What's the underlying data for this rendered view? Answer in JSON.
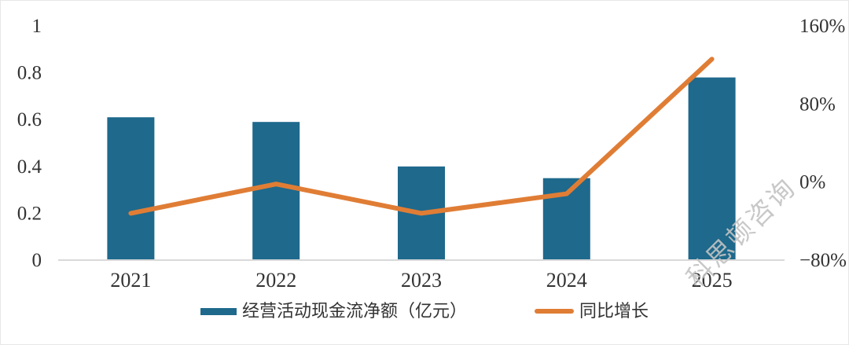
{
  "watermark": "科思顿咨询",
  "colors": {
    "bar": "#1E698C",
    "line": "#E07D35",
    "axis_line": "#D9D9D9",
    "tick_text": "#333333"
  },
  "chart_data": {
    "type": "bar",
    "subtype": "bar-line-combo",
    "title": "",
    "categories": [
      "2021",
      "2022",
      "2023",
      "2024",
      "2025"
    ],
    "series": [
      {
        "name": "经营活动现金流净额（亿元）",
        "type": "bar",
        "axis": "left",
        "values": [
          0.61,
          0.59,
          0.4,
          0.35,
          0.78
        ],
        "color": "#1E698C"
      },
      {
        "name": "同比增长",
        "type": "line",
        "axis": "right",
        "unit": "%",
        "values": [
          -32,
          -2,
          -32,
          -12,
          126
        ],
        "color": "#E07D35"
      }
    ],
    "left_axis": {
      "min": 0,
      "max": 1,
      "ticks": [
        {
          "label": "1",
          "value": 1
        },
        {
          "label": "0.8",
          "value": 0.8
        },
        {
          "label": "0.6",
          "value": 0.6
        },
        {
          "label": "0.4",
          "value": 0.4
        },
        {
          "label": "0.2",
          "value": 0.2
        },
        {
          "label": "0",
          "value": 0
        }
      ]
    },
    "right_axis": {
      "min": -80,
      "max": 160,
      "ticks": [
        {
          "label": "160%",
          "value": 160
        },
        {
          "label": "80%",
          "value": 80
        },
        {
          "label": "0%",
          "value": 0
        },
        {
          "label": "−80%",
          "value": -80
        }
      ]
    },
    "grid": false,
    "legend_position": "bottom"
  }
}
